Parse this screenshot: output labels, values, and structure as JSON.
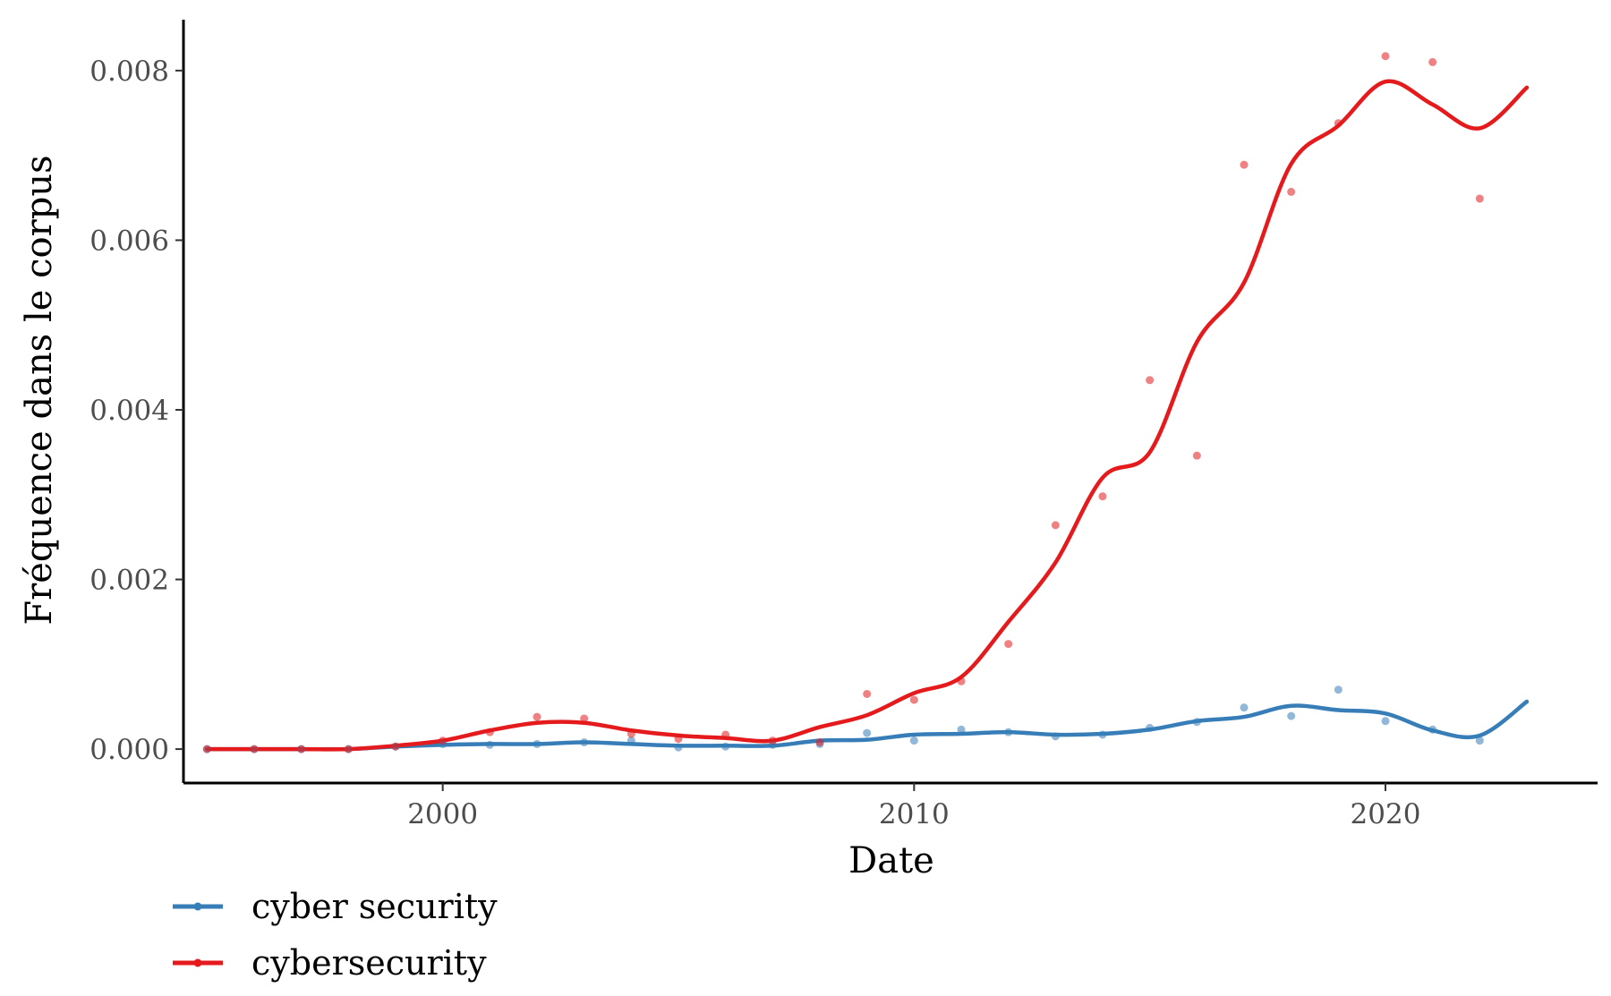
{
  "chart_data": {
    "type": "line",
    "xlabel": "Date",
    "ylabel": "Fréquence dans le corpus",
    "xlim": [
      1994.5,
      2024.5
    ],
    "ylim": [
      -0.0004,
      0.0086
    ],
    "x_ticks": [
      2000,
      2010,
      2020
    ],
    "y_ticks": [
      0.0,
      0.002,
      0.004,
      0.006,
      0.008
    ],
    "x_tick_labels": [
      "2000",
      "2010",
      "2020"
    ],
    "y_tick_labels": [
      "0.000",
      "0.002",
      "0.004",
      "0.006",
      "0.008"
    ],
    "grid": false,
    "legend_position": "bottom-left",
    "series": [
      {
        "name": "cyber security",
        "color": "#377eb8",
        "points": {
          "x": [
            1995,
            1996,
            1997,
            1998,
            1999,
            2000,
            2001,
            2002,
            2003,
            2004,
            2005,
            2006,
            2007,
            2008,
            2009,
            2010,
            2011,
            2012,
            2013,
            2014,
            2015,
            2016,
            2017,
            2018,
            2019,
            2020,
            2021,
            2022
          ],
          "y": [
            0.0,
            0.0,
            0.0,
            0.0,
            3e-05,
            6e-05,
            5e-05,
            6e-05,
            8e-05,
            0.0001,
            2e-05,
            3e-05,
            5e-05,
            6e-05,
            0.00019,
            0.0001,
            0.00023,
            0.0002,
            0.00015,
            0.00017,
            0.00025,
            0.00032,
            0.00049,
            0.00039,
            0.0007,
            0.00033,
            0.00023,
            0.0001
          ]
        },
        "smooth": {
          "x": [
            1995,
            1996,
            1997,
            1998,
            1999,
            2000,
            2001,
            2002,
            2003,
            2004,
            2005,
            2006,
            2007,
            2008,
            2009,
            2010,
            2011,
            2012,
            2013,
            2014,
            2015,
            2016,
            2017,
            2018,
            2019,
            2020,
            2021,
            2022,
            2023
          ],
          "y": [
            0.0,
            0.0,
            0.0,
            0.0,
            3e-05,
            5e-05,
            6e-05,
            6e-05,
            8e-05,
            6e-05,
            4e-05,
            4e-05,
            4e-05,
            0.0001,
            0.00011,
            0.00017,
            0.00018,
            0.0002,
            0.00017,
            0.00018,
            0.00023,
            0.00033,
            0.00038,
            0.00051,
            0.00046,
            0.00042,
            0.00022,
            0.00016,
            0.00056
          ]
        }
      },
      {
        "name": "cybersecurity",
        "color": "#e41a1c",
        "points": {
          "x": [
            1995,
            1996,
            1997,
            1998,
            1999,
            2000,
            2001,
            2002,
            2003,
            2004,
            2005,
            2006,
            2007,
            2008,
            2009,
            2010,
            2011,
            2012,
            2013,
            2014,
            2015,
            2016,
            2017,
            2018,
            2019,
            2020,
            2021,
            2022
          ],
          "y": [
            0.0,
            0.0,
            0.0,
            0.0,
            3e-05,
            0.0001,
            0.0002,
            0.00038,
            0.00036,
            0.00018,
            0.00012,
            0.00017,
            0.0001,
            8e-05,
            0.00065,
            0.00058,
            0.0008,
            0.00124,
            0.00264,
            0.00298,
            0.00435,
            0.00346,
            0.00689,
            0.00657,
            0.00738,
            0.00817,
            0.0081,
            0.00649
          ]
        },
        "smooth": {
          "x": [
            1995,
            1996,
            1997,
            1998,
            1999,
            2000,
            2001,
            2002,
            2003,
            2004,
            2005,
            2006,
            2007,
            2008,
            2009,
            2010,
            2011,
            2012,
            2013,
            2014,
            2015,
            2016,
            2017,
            2018,
            2019,
            2020,
            2021,
            2022,
            2023
          ],
          "y": [
            0.0,
            0.0,
            0.0,
            0.0,
            4e-05,
            0.0001,
            0.00022,
            0.00031,
            0.00031,
            0.00022,
            0.00016,
            0.00013,
            0.0001,
            0.00026,
            0.0004,
            0.00066,
            0.00085,
            0.0015,
            0.0022,
            0.0032,
            0.0035,
            0.0048,
            0.0055,
            0.0069,
            0.00735,
            0.00787,
            0.0076,
            0.00732,
            0.0078
          ]
        }
      }
    ]
  }
}
